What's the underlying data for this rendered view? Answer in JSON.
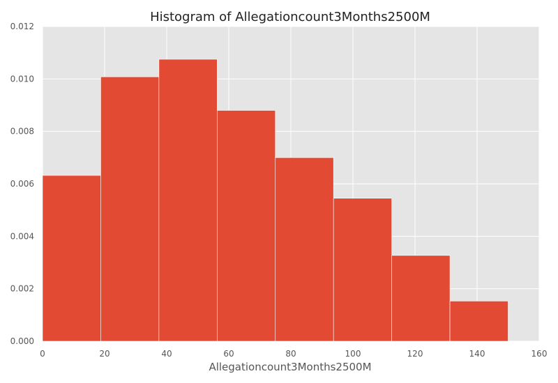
{
  "chart_data": {
    "type": "bar",
    "title": "Histogram of Allegationcount3Months2500M",
    "xlabel": "Allegationcount3Months2500M",
    "ylabel": "",
    "xlim": [
      0,
      160
    ],
    "ylim": [
      0,
      0.012
    ],
    "xticks": [
      "0",
      "20",
      "40",
      "60",
      "80",
      "100",
      "120",
      "140",
      "160"
    ],
    "yticks": [
      "0.000",
      "0.002",
      "0.004",
      "0.006",
      "0.008",
      "0.010",
      "0.012"
    ],
    "bins": [
      {
        "x0": 0.0,
        "x1": 18.75,
        "value": 0.00632
      },
      {
        "x0": 18.75,
        "x1": 37.5,
        "value": 0.01008
      },
      {
        "x0": 37.5,
        "x1": 56.25,
        "value": 0.01075
      },
      {
        "x0": 56.25,
        "x1": 75.0,
        "value": 0.0088
      },
      {
        "x0": 75.0,
        "x1": 93.75,
        "value": 0.007
      },
      {
        "x0": 93.75,
        "x1": 112.5,
        "value": 0.00545
      },
      {
        "x0": 112.5,
        "x1": 131.25,
        "value": 0.00327
      },
      {
        "x0": 131.25,
        "x1": 150.0,
        "value": 0.00153
      }
    ],
    "grid": true,
    "colors": {
      "bar": "#E24A33",
      "background": "#E5E5E5",
      "grid": "#FFFFFF"
    }
  }
}
